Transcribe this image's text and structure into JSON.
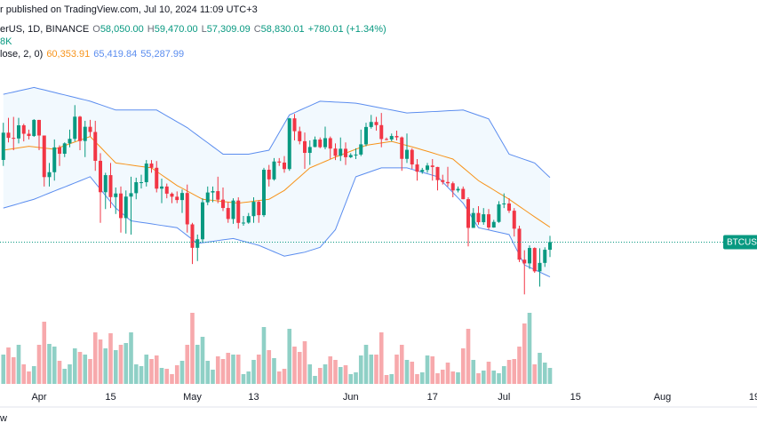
{
  "header": {
    "publisher": "r published on TradingView.com, Jul 10, 2024 11:09 UTC+3",
    "symbol": "erUS, 1D, BINANCE",
    "ohlc": [
      {
        "label": "O",
        "value": "58,050.00"
      },
      {
        "label": "H",
        "value": "59,470.00"
      },
      {
        "label": "L",
        "value": "57,309.09"
      },
      {
        "label": "C",
        "value": "58,830.01"
      }
    ],
    "change": "+780.01 (+1.34%)",
    "volume": "8K",
    "indicator": "lose, 2, 0)",
    "indicator_values": [
      "60,353.91",
      "65,419.84",
      "55,287.99"
    ]
  },
  "footer": "w",
  "chart_data": {
    "type": "candlestick",
    "symbol_label": "BTCUSD",
    "up_color": "#089981",
    "down_color": "#f23645",
    "volume_up_color": "#8fd0c6",
    "volume_down_color": "#f7a9ac",
    "ylim": [
      52800,
      75000
    ],
    "volume_ylim": [
      0,
      100
    ],
    "xticks": [
      {
        "value": 7,
        "label": "Apr"
      },
      {
        "value": 21,
        "label": "15"
      },
      {
        "value": 37,
        "label": "May"
      },
      {
        "value": 49,
        "label": "13"
      },
      {
        "value": 68,
        "label": "Jun"
      },
      {
        "value": 84,
        "label": "17"
      },
      {
        "value": 98,
        "label": "Jul"
      },
      {
        "value": 112,
        "label": "15"
      },
      {
        "value": 129,
        "label": "Aug"
      },
      {
        "value": 147,
        "label": "19"
      }
    ],
    "open": [
      67210,
      69990,
      69460,
      69400,
      70740,
      69880,
      69650,
      71290,
      69700,
      65460,
      65960,
      68490,
      67840,
      68900,
      69360,
      71620,
      69140,
      70590,
      70060,
      67120,
      63920,
      65660,
      63420,
      63790,
      61280,
      63470,
      63820,
      64940,
      64940,
      66840,
      66410,
      64280,
      64500,
      63770,
      63460,
      63120,
      63840,
      60640,
      58250,
      59120,
      62890,
      63890,
      64030,
      63160,
      62310,
      61190,
      63070,
      60790,
      60820,
      61480,
      62940,
      61580,
      66210,
      65230,
      67050,
      66940,
      66280,
      71450,
      70140,
      69120,
      67930,
      68530,
      69290,
      68510,
      69430,
      68370,
      67630,
      68350,
      67490,
      67710,
      67760,
      68800,
      70570,
      71080,
      70760,
      69340,
      69300,
      69650,
      69510,
      67320,
      68240,
      66750,
      66010,
      66190,
      66640,
      66490,
      65150,
      64960,
      64830,
      64100,
      64260,
      63210,
      60280,
      61800,
      60860,
      61670,
      60320,
      60890,
      62680,
      62770,
      62030,
      60200,
      57040,
      56660,
      58230,
      55850,
      56710,
      58050
    ],
    "high": [
      71000,
      71500,
      71600,
      71500,
      70900,
      70300,
      71370,
      71300,
      69700,
      66900,
      69300,
      68700,
      69000,
      70300,
      72800,
      71700,
      71200,
      71300,
      71200,
      67900,
      65900,
      66900,
      64400,
      64500,
      64100,
      65500,
      65400,
      65700,
      67200,
      67200,
      67100,
      65300,
      64800,
      63900,
      64000,
      64200,
      64700,
      60800,
      59600,
      63300,
      64500,
      64500,
      65500,
      64400,
      62900,
      63300,
      63400,
      61500,
      61800,
      63400,
      63100,
      66400,
      66700,
      67400,
      67400,
      67600,
      71500,
      71900,
      70600,
      70000,
      69200,
      69600,
      69500,
      70600,
      69600,
      68900,
      69500,
      69000,
      67900,
      68400,
      70300,
      71000,
      71800,
      71600,
      72000,
      69500,
      69900,
      70200,
      69600,
      69900,
      68400,
      67300,
      66400,
      66900,
      67300,
      66500,
      65700,
      66500,
      65000,
      64500,
      64500,
      63400,
      62300,
      62500,
      62300,
      62200,
      61100,
      63000,
      63800,
      63300,
      62300,
      60500,
      58000,
      58500,
      58300,
      58200,
      58300,
      59470
    ],
    "low": [
      66600,
      69000,
      68200,
      68900,
      69100,
      69300,
      69560,
      68200,
      64500,
      64500,
      65100,
      66600,
      67500,
      68500,
      69100,
      68200,
      67500,
      69600,
      66100,
      60800,
      62200,
      62300,
      61700,
      59800,
      59700,
      59600,
      63200,
      64300,
      64500,
      65900,
      63900,
      62800,
      63300,
      62800,
      62800,
      61800,
      59800,
      56600,
      56900,
      58800,
      62600,
      62900,
      62800,
      62000,
      60800,
      60700,
      60200,
      60500,
      60700,
      60800,
      60800,
      61400,
      64500,
      65100,
      66600,
      65900,
      66100,
      69200,
      68800,
      66300,
      66700,
      68500,
      68400,
      68300,
      67300,
      67200,
      67100,
      66700,
      67400,
      67300,
      67600,
      68600,
      70400,
      70200,
      68500,
      69200,
      69100,
      69200,
      66100,
      66900,
      66300,
      65100,
      65800,
      65900,
      65100,
      64100,
      64700,
      64500,
      63400,
      63900,
      63200,
      58400,
      60300,
      60600,
      60600,
      60100,
      60300,
      60800,
      62300,
      61800,
      59400,
      56800,
      53500,
      56100,
      55700,
      54300,
      56300,
      57309.09
    ],
    "close": [
      69990,
      69460,
      69400,
      70740,
      69880,
      69650,
      71290,
      69700,
      65460,
      65960,
      68490,
      67840,
      68900,
      69360,
      71620,
      69140,
      70590,
      70060,
      67120,
      63920,
      65660,
      63420,
      63790,
      61280,
      63470,
      63820,
      64940,
      64940,
      66840,
      66410,
      64280,
      64500,
      63770,
      63460,
      63120,
      63840,
      60640,
      58250,
      59120,
      62890,
      63890,
      64030,
      63160,
      62310,
      61190,
      63070,
      60790,
      60820,
      61480,
      62940,
      61580,
      66210,
      65230,
      67050,
      66940,
      66280,
      71450,
      70140,
      69120,
      67930,
      68530,
      69290,
      68510,
      69430,
      68370,
      67630,
      68350,
      67490,
      67710,
      67760,
      68800,
      70570,
      71080,
      70760,
      69340,
      69300,
      69650,
      69510,
      67320,
      68240,
      66750,
      66010,
      66190,
      66640,
      66490,
      65150,
      64960,
      64830,
      64100,
      64260,
      63210,
      60280,
      61800,
      60860,
      61670,
      60320,
      60890,
      62680,
      62770,
      62030,
      60200,
      57040,
      56660,
      58230,
      55850,
      56710,
      58050,
      58830.01
    ],
    "volume": [
      33,
      41,
      30,
      44,
      22,
      14,
      20,
      44,
      70,
      45,
      42,
      26,
      17,
      22,
      40,
      36,
      33,
      28,
      58,
      50,
      40,
      57,
      38,
      44,
      46,
      58,
      22,
      20,
      33,
      28,
      32,
      18,
      17,
      11,
      21,
      26,
      44,
      80,
      44,
      53,
      26,
      16,
      31,
      28,
      35,
      33,
      33,
      11,
      14,
      27,
      33,
      64,
      38,
      29,
      14,
      17,
      62,
      42,
      36,
      48,
      22,
      9,
      18,
      22,
      31,
      27,
      19,
      21,
      11,
      13,
      32,
      44,
      33,
      33,
      58,
      10,
      11,
      33,
      44,
      27,
      25,
      11,
      13,
      32,
      31,
      12,
      16,
      24,
      14,
      13,
      40,
      62,
      27,
      12,
      15,
      25,
      15,
      12,
      20,
      27,
      28,
      42,
      68,
      80,
      22,
      35,
      24,
      18
    ],
    "bands": [
      {
        "name": "basis",
        "color": "#f7931a",
        "values": [
          68200,
          68280,
          68360,
          68440,
          68520,
          68600,
          68540,
          68480,
          68420,
          68360,
          68300,
          68490,
          68670,
          68860,
          69040,
          69230,
          69410,
          69600,
          69060,
          68520,
          67980,
          67440,
          66900,
          66830,
          66760,
          66690,
          66610,
          66540,
          66470,
          66400,
          66040,
          65680,
          65320,
          64960,
          64600,
          64320,
          64040,
          63760,
          63480,
          63200,
          63140,
          63090,
          63030,
          62970,
          62910,
          62860,
          62800,
          62870,
          62930,
          63000,
          63070,
          63130,
          63200,
          63500,
          63800,
          64100,
          64560,
          65020,
          65480,
          65940,
          66400,
          66620,
          66840,
          67060,
          67280,
          67500,
          67700,
          67900,
          68100,
          68300,
          68500,
          68700,
          68780,
          68860,
          68940,
          69020,
          69100,
          68960,
          68820,
          68680,
          68540,
          68400,
          68240,
          68090,
          67930,
          67770,
          67610,
          67460,
          67300,
          66860,
          66420,
          65980,
          65540,
          65100,
          64780,
          64470,
          64150,
          63830,
          63520,
          63200,
          62840,
          62480,
          62120,
          61760,
          61400,
          61050,
          60700,
          60353.91
        ]
      },
      {
        "name": "upper",
        "color": "#5b8def",
        "values": [
          73900,
          74020,
          74130,
          74250,
          74370,
          74480,
          74600,
          74470,
          74350,
          74220,
          74090,
          73960,
          73840,
          73710,
          73580,
          73450,
          73330,
          73200,
          73020,
          72840,
          72660,
          72480,
          72300,
          72300,
          72300,
          72300,
          72300,
          72300,
          72300,
          72300,
          72300,
          72000,
          71700,
          71400,
          71100,
          70800,
          70500,
          70110,
          69730,
          69340,
          68960,
          68570,
          68190,
          67800,
          67800,
          67800,
          67800,
          67800,
          67800,
          67900,
          68000,
          68100,
          68200,
          69100,
          70000,
          70900,
          71800,
          72030,
          72270,
          72500,
          72730,
          72970,
          73200,
          73170,
          73140,
          73110,
          73090,
          73060,
          73030,
          73000,
          72900,
          72800,
          72700,
          72600,
          72500,
          72400,
          72300,
          72200,
          72100,
          72000,
          72030,
          72050,
          72080,
          72110,
          72140,
          72160,
          72190,
          72220,
          72250,
          72270,
          72300,
          72120,
          71940,
          71760,
          71580,
          71400,
          70500,
          69600,
          68700,
          67800,
          67620,
          67440,
          67260,
          67080,
          66900,
          66400,
          65900,
          65419.84
        ]
      },
      {
        "name": "lower",
        "color": "#5b8def",
        "values": [
          62300,
          62450,
          62600,
          62750,
          62900,
          63050,
          63200,
          63410,
          63620,
          63830,
          64040,
          64250,
          64450,
          64660,
          64870,
          65080,
          65290,
          65500,
          64860,
          64220,
          63580,
          62940,
          62300,
          61870,
          61430,
          61000,
          60920,
          60840,
          60770,
          60690,
          60610,
          60530,
          60460,
          60380,
          60300,
          59900,
          59500,
          59100,
          58700,
          58770,
          58840,
          58910,
          58990,
          59060,
          59130,
          59200,
          59060,
          58920,
          58780,
          58640,
          58500,
          58280,
          58060,
          57840,
          57620,
          57400,
          57500,
          57600,
          57700,
          57800,
          57970,
          58130,
          58300,
          58900,
          59500,
          60100,
          61450,
          62800,
          64150,
          65500,
          65680,
          65860,
          66040,
          66220,
          66400,
          66400,
          66400,
          66400,
          66400,
          66400,
          66250,
          66100,
          65950,
          65800,
          65650,
          65500,
          64960,
          64420,
          63880,
          63340,
          62800,
          61970,
          61130,
          60300,
          60180,
          60070,
          59950,
          59830,
          59720,
          59600,
          58570,
          57530,
          56500,
          56260,
          56020,
          55770,
          55530,
          55287.99
        ]
      }
    ]
  }
}
